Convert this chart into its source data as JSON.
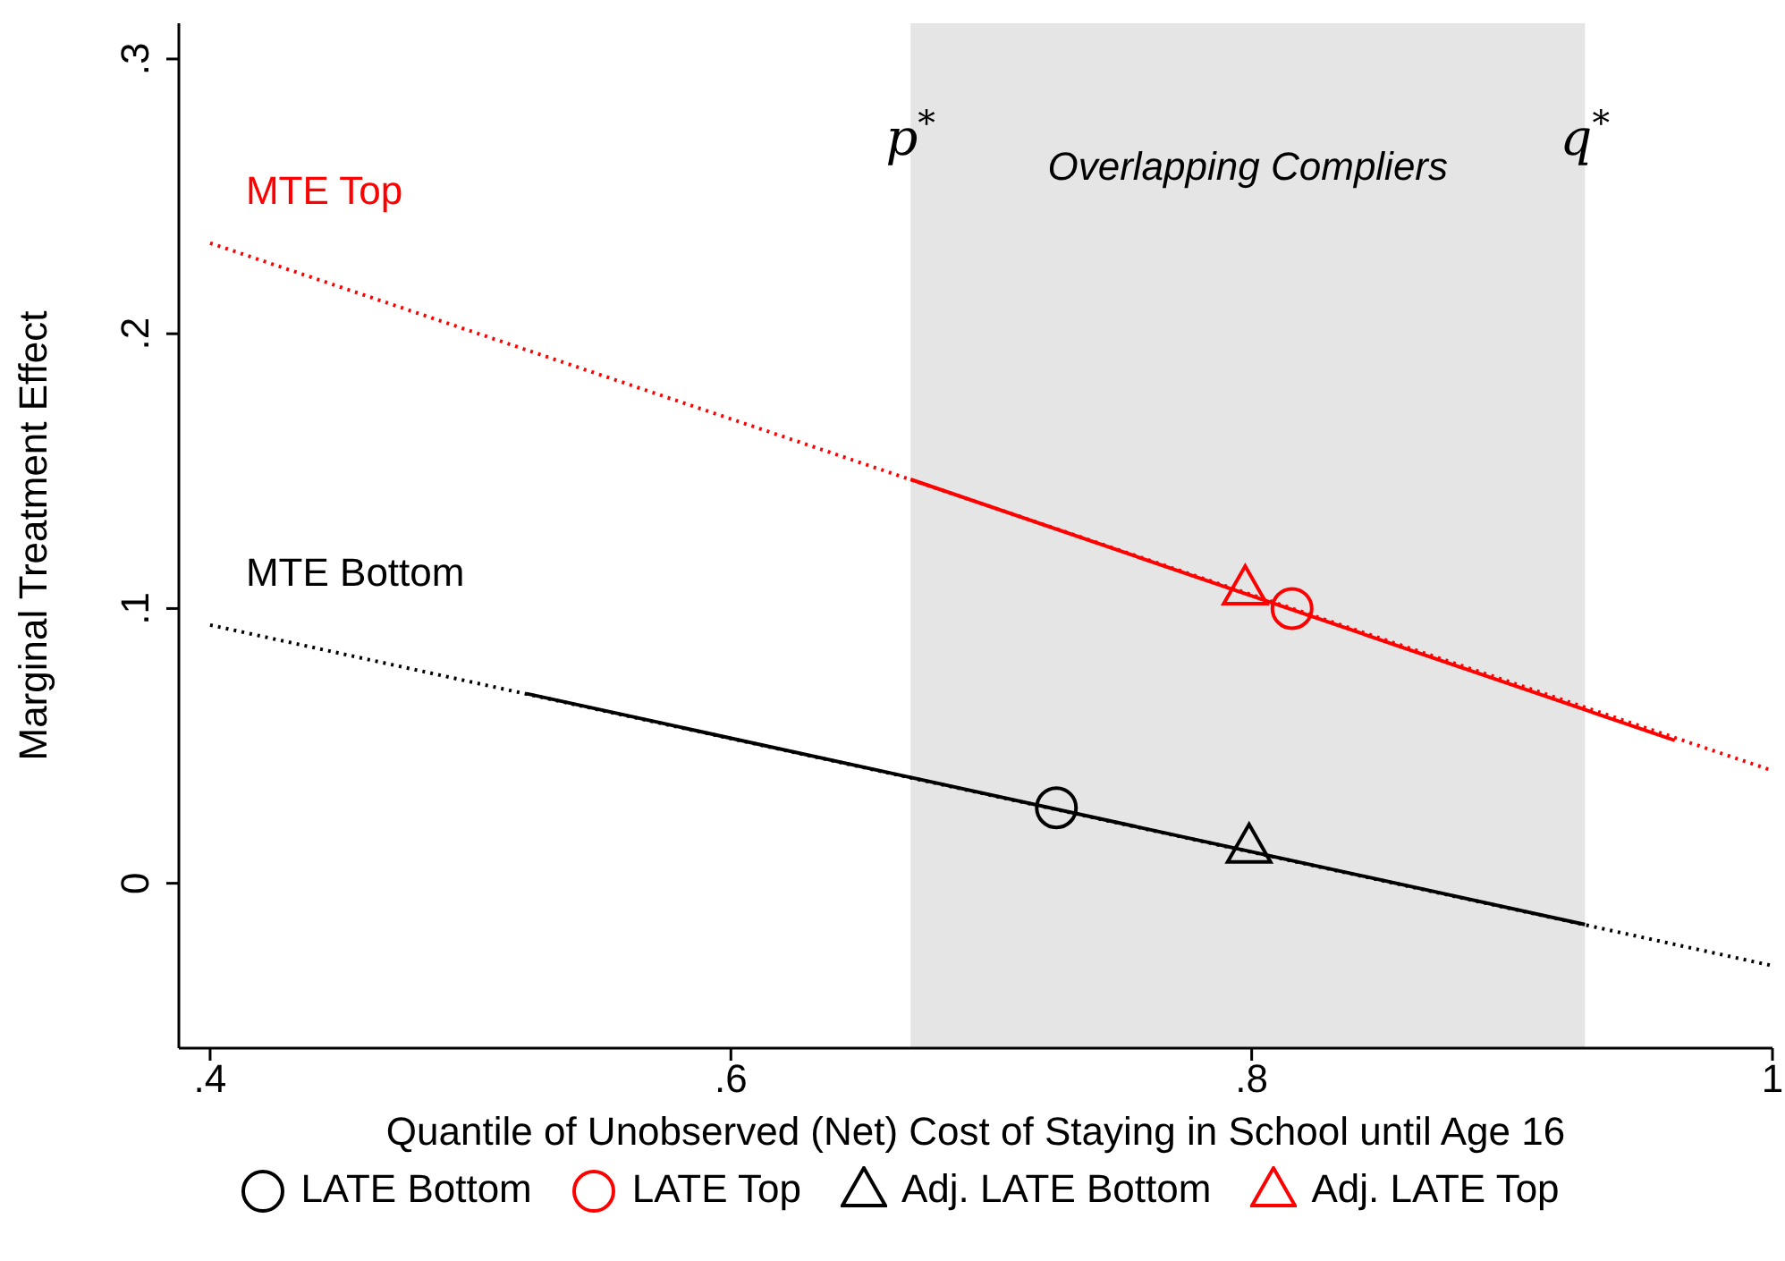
{
  "chart_data": {
    "type": "line",
    "xlabel": "Quantile of Unobserved (Net) Cost of Staying in School until Age 16",
    "ylabel": "Marginal Treatment Effect",
    "xlim": [
      0.388,
      1.0
    ],
    "xticks": [
      {
        "value": 0.4,
        "label": ".4"
      },
      {
        "value": 0.6,
        "label": ".6"
      },
      {
        "value": 0.8,
        "label": ".8"
      },
      1
    ],
    "ylim": [
      -0.06,
      0.313
    ],
    "yticks": [
      0,
      {
        "value": 0.1,
        "label": ".1"
      },
      {
        "value": 0.2,
        "label": ".2"
      },
      {
        "value": 0.3,
        "label": ".3"
      }
    ],
    "legend": "bottom",
    "bands": [
      {
        "axis": "x",
        "from": 0.669,
        "to": 0.928,
        "label": "Overlapping Compliers",
        "color": "#e5e5e5"
      }
    ],
    "annotations": [
      {
        "text": "p$^{*}$",
        "x": 0.669,
        "y": 0.265
      },
      {
        "text": "q$^{*}$",
        "x": 0.928,
        "y": 0.265
      }
    ],
    "series": [
      {
        "name": "MTE Top",
        "color": "#ff0000",
        "line_style": "dotted",
        "x": [
          0.4,
          1.0
        ],
        "values": [
          0.233,
          0.041
        ]
      },
      {
        "color": "#ff0000",
        "line_style": "solid",
        "x": [
          0.669,
          0.9625
        ],
        "values": [
          0.147,
          0.052
        ]
      },
      {
        "name": "MTE Bottom",
        "color": "#000000",
        "line_style": "dotted",
        "x": [
          0.4,
          1.0
        ],
        "values": [
          0.094,
          -0.03
        ]
      },
      {
        "color": "#000000",
        "line_style": "solid",
        "x": [
          0.5216,
          0.928
        ],
        "values": [
          0.069,
          -0.015
        ]
      },
      {
        "type": "scatter",
        "name": "LATE Bottom",
        "color": "#000000",
        "marker": "circle",
        "x": [
          0.725
        ],
        "values": [
          0.0275
        ]
      },
      {
        "type": "scatter",
        "name": "LATE Top",
        "color": "#ff0000",
        "marker": "circle",
        "x": [
          0.8155
        ],
        "values": [
          0.1
        ]
      },
      {
        "type": "scatter",
        "name": "Adj. LATE Bottom",
        "color": "#000000",
        "marker": "triangle",
        "x": [
          0.799
        ],
        "values": [
          0.013
        ]
      },
      {
        "type": "scatter",
        "name": "Adj. LATE Top",
        "color": "#ff0000",
        "marker": "triangle",
        "x": [
          0.7975
        ],
        "values": [
          0.107
        ]
      }
    ]
  }
}
